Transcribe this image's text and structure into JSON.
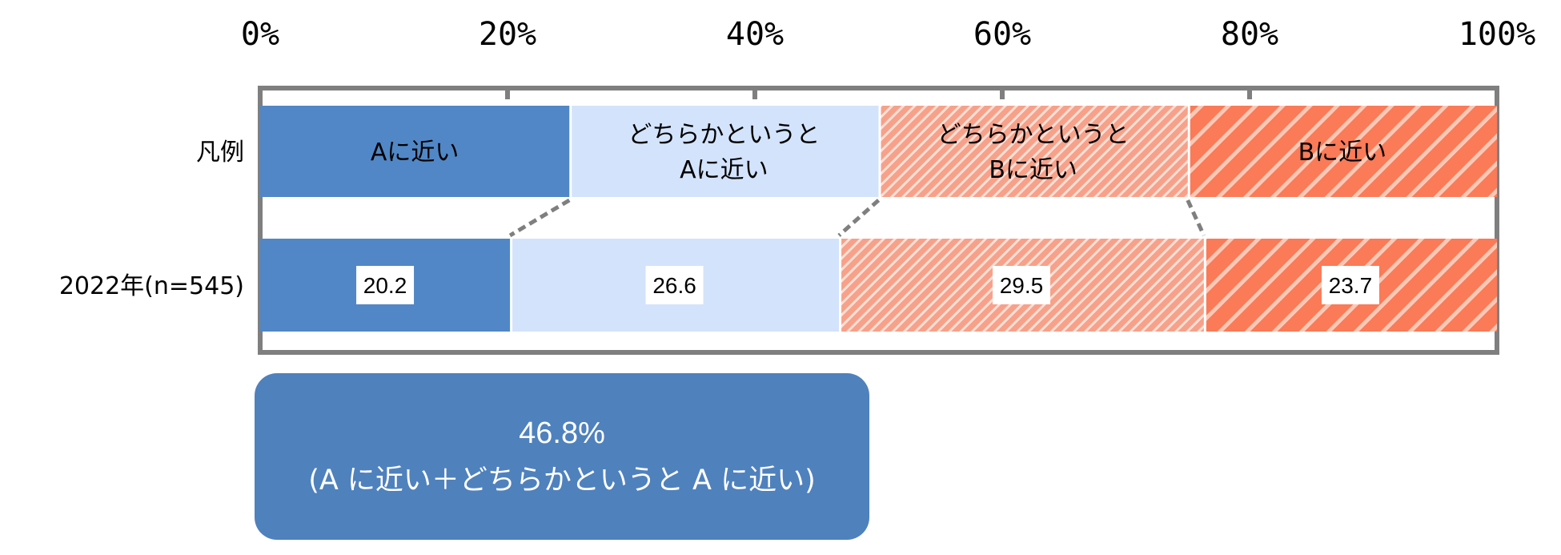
{
  "chart_data": {
    "type": "bar",
    "orientation": "horizontal",
    "stacked": true,
    "xlim": [
      0,
      100
    ],
    "x_ticks": [
      "0%",
      "20%",
      "40%",
      "60%",
      "80%",
      "100%"
    ],
    "legend_row_label": "凡例",
    "legend_segments": [
      {
        "lines": [
          "Aに近い"
        ],
        "color": "#5187c6",
        "pattern": "solid"
      },
      {
        "lines": [
          "どちらかというと",
          "Aに近い"
        ],
        "color": "#d3e3fb",
        "pattern": "solid"
      },
      {
        "lines": [
          "どちらかというと",
          "Bに近い"
        ],
        "color": "#f7a18a",
        "pattern": "fine-diagonal"
      },
      {
        "lines": [
          "Bに近い"
        ],
        "color": "#fb7a57",
        "pattern": "wide-diagonal"
      }
    ],
    "categories": [
      "2022年(n=545)"
    ],
    "series": [
      {
        "values": [
          20.2
        ],
        "value_labels": [
          "20.2"
        ]
      },
      {
        "values": [
          26.6
        ],
        "value_labels": [
          "26.6"
        ]
      },
      {
        "values": [
          29.5
        ],
        "value_labels": [
          "29.5"
        ]
      },
      {
        "values": [
          23.7
        ],
        "value_labels": [
          "23.7"
        ]
      }
    ]
  },
  "summary": {
    "value": "46.8%",
    "note": "(A に近い＋どちらかというと A に近い)",
    "color": "#4f81bd"
  }
}
